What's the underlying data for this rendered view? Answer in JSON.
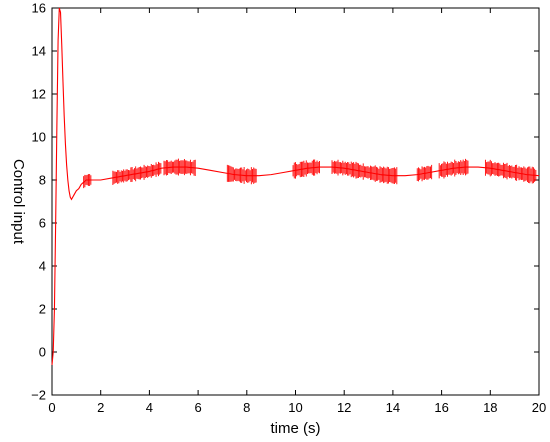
{
  "chart_data": {
    "type": "line",
    "title": "",
    "xlabel": "time (s)",
    "ylabel": "Control input",
    "xlim": [
      0,
      20
    ],
    "ylim": [
      -2,
      16
    ],
    "xticks": [
      0,
      2,
      4,
      6,
      8,
      10,
      12,
      14,
      16,
      18,
      20
    ],
    "yticks": [
      -2,
      0,
      2,
      4,
      6,
      8,
      10,
      12,
      14,
      16
    ],
    "grid": false,
    "legend": "none",
    "series": [
      {
        "color": "#ff0000",
        "baseline_x": [
          0,
          0.05,
          0.1,
          0.15,
          0.2,
          0.25,
          0.3,
          0.35,
          0.4,
          0.45,
          0.5,
          0.55,
          0.6,
          0.65,
          0.7,
          0.75,
          0.8,
          0.9,
          1.0,
          1.1,
          1.2,
          1.3,
          1.4,
          1.6,
          1.8,
          2.0,
          2.5,
          3.0,
          3.5,
          4.0,
          4.5,
          5.0,
          5.5,
          6.0,
          6.5,
          7.0,
          7.5,
          8.0,
          8.5,
          9.0,
          9.5,
          10.0,
          10.5,
          11.0,
          11.5,
          12.0,
          12.5,
          13.0,
          13.5,
          14.0,
          14.5,
          15.0,
          15.5,
          16.0,
          16.5,
          17.0,
          17.5,
          18.0,
          18.5,
          19.0,
          19.5,
          20.0
        ],
        "baseline_y": [
          -0.6,
          0.0,
          2.0,
          6.0,
          10.5,
          14.5,
          16.0,
          15.8,
          14.3,
          12.6,
          11.0,
          9.7,
          8.7,
          8.0,
          7.5,
          7.2,
          7.1,
          7.3,
          7.5,
          7.6,
          7.8,
          7.9,
          8.0,
          8.0,
          8.0,
          8.0,
          8.1,
          8.2,
          8.3,
          8.4,
          8.55,
          8.6,
          8.6,
          8.55,
          8.45,
          8.35,
          8.25,
          8.2,
          8.2,
          8.25,
          8.35,
          8.45,
          8.55,
          8.6,
          8.6,
          8.55,
          8.45,
          8.35,
          8.25,
          8.2,
          8.2,
          8.25,
          8.35,
          8.45,
          8.55,
          8.6,
          8.6,
          8.55,
          8.45,
          8.35,
          8.25,
          8.2
        ],
        "chattering": [
          {
            "x": [
              1.3,
              1.6
            ],
            "amplitude": 0.35
          },
          {
            "x": [
              2.5,
              4.5
            ],
            "amplitude": 0.35
          },
          {
            "x": [
              4.6,
              5.9
            ],
            "amplitude": 0.4
          },
          {
            "x": [
              7.2,
              8.4
            ],
            "amplitude": 0.4
          },
          {
            "x": [
              9.9,
              11.0
            ],
            "amplitude": 0.4
          },
          {
            "x": [
              11.5,
              14.2
            ],
            "amplitude": 0.4
          },
          {
            "x": [
              15.0,
              15.6
            ],
            "amplitude": 0.35
          },
          {
            "x": [
              15.9,
              17.1
            ],
            "amplitude": 0.4
          },
          {
            "x": [
              17.8,
              19.9
            ],
            "amplitude": 0.4
          }
        ]
      }
    ]
  }
}
